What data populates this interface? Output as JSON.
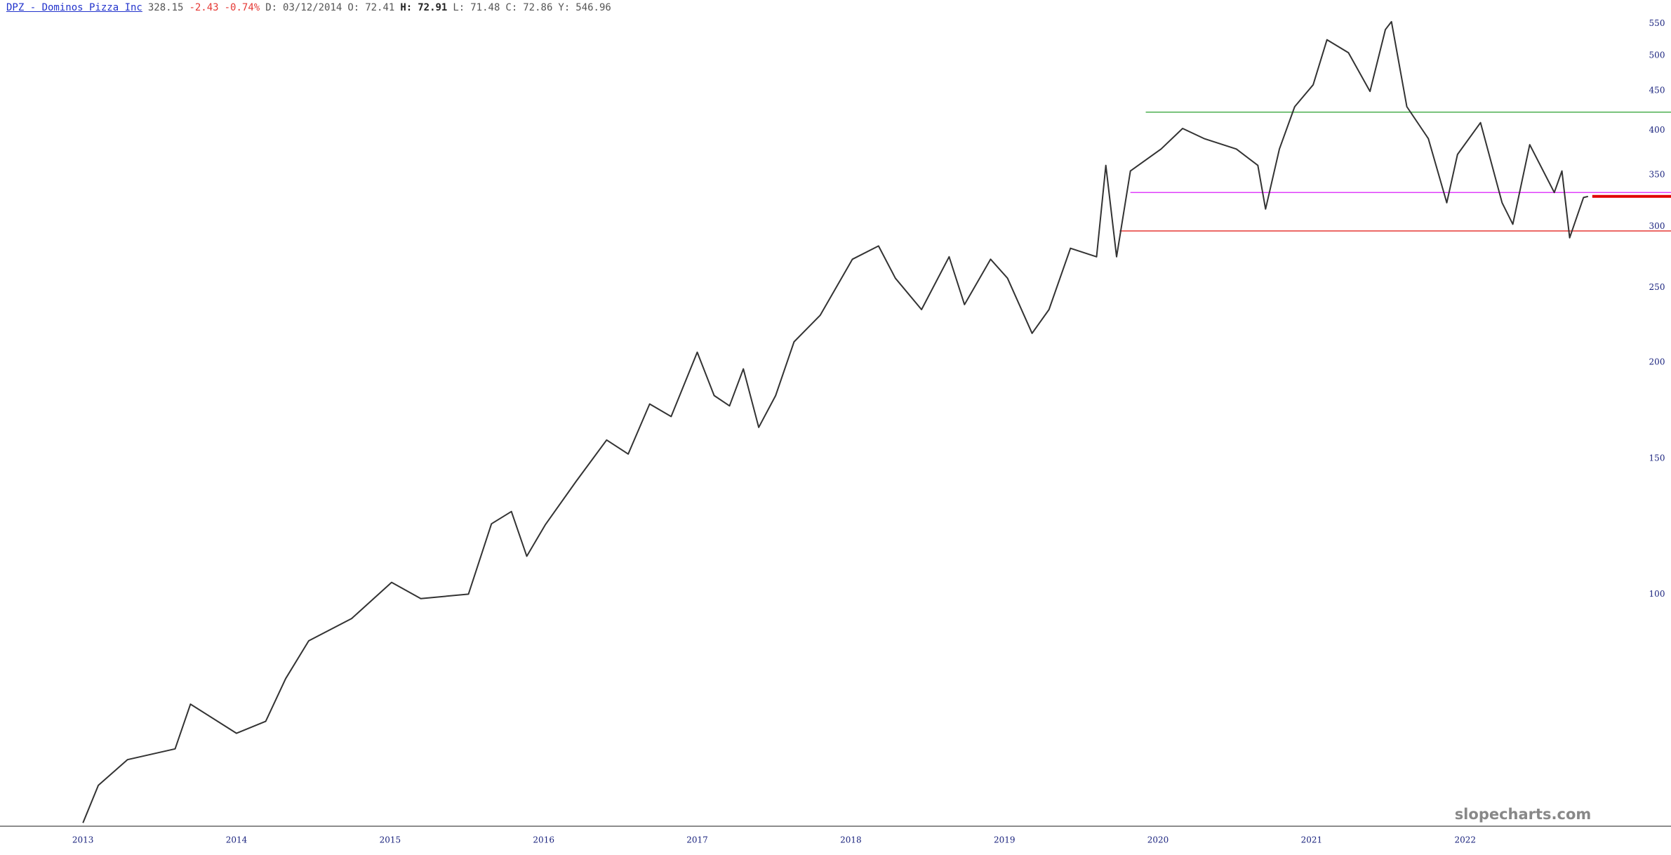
{
  "header": {
    "symbol": "DPZ - Dominos Pizza Inc",
    "last": "328.15",
    "change": "-2.43",
    "change_pct": "-0.74%",
    "date_label": "D:",
    "date": "03/12/2014",
    "ohlc": [
      {
        "label": "O:",
        "value": "72.41"
      },
      {
        "label": "H:",
        "value": "72.91"
      },
      {
        "label": "L:",
        "value": "71.48"
      },
      {
        "label": "C:",
        "value": "72.86"
      }
    ],
    "y_label": "Y:",
    "y_value": "546.96"
  },
  "chart_data": {
    "type": "line",
    "log_scale": true,
    "x": [
      2013.0,
      2013.1,
      2013.29,
      2013.6,
      2013.7,
      2014.0,
      2014.19,
      2014.32,
      2014.47,
      2014.75,
      2015.01,
      2015.2,
      2015.51,
      2015.66,
      2015.79,
      2015.89,
      2016.01,
      2016.21,
      2016.41,
      2016.55,
      2016.69,
      2016.83,
      2017.0,
      2017.11,
      2017.21,
      2017.3,
      2017.4,
      2017.51,
      2017.63,
      2017.8,
      2018.01,
      2018.18,
      2018.29,
      2018.46,
      2018.64,
      2018.74,
      2018.91,
      2019.02,
      2019.18,
      2019.29,
      2019.43,
      2019.6,
      2019.66,
      2019.73,
      2019.82,
      2020.02,
      2020.16,
      2020.3,
      2020.51,
      2020.65,
      2020.7,
      2020.79,
      2020.89,
      2021.01,
      2021.1,
      2021.24,
      2021.38,
      2021.48,
      2021.52,
      2021.62,
      2021.76,
      2021.88,
      2021.95,
      2022.1,
      2022.24,
      2022.31,
      2022.42,
      2022.58,
      2022.63,
      2022.68,
      2022.77,
      2022.8
    ],
    "series": [
      {
        "name": "DPZ",
        "color": "#333333",
        "values": [
          50.5,
          56.5,
          61,
          63,
          72,
          66,
          68.4,
          77.7,
          87,
          93,
          103.6,
          98.7,
          100,
          123.4,
          128,
          112,
          123,
          140,
          158.5,
          152,
          176.5,
          170,
          206,
          181,
          175.5,
          196,
          164.6,
          181,
          212.5,
          230,
          272,
          283,
          257,
          234,
          274,
          237.5,
          272,
          257,
          218,
          234,
          281,
          274,
          360,
          274,
          354,
          378,
          402,
          390,
          378,
          360,
          316,
          378,
          429,
          458,
          524,
          504,
          449,
          540,
          553,
          429,
          390,
          322,
          372,
          409,
          322,
          302,
          383,
          332,
          354,
          290,
          327,
          328.15
        ]
      }
    ],
    "hlines": [
      {
        "value": 422,
        "start": 2019.92,
        "color": "#4caf50"
      },
      {
        "value": 332,
        "start": 2019.82,
        "color": "#e040fb"
      },
      {
        "value": 296,
        "start": 2019.75,
        "color": "#e53935"
      }
    ],
    "marker_color": "#e00000",
    "xlim": [
      2012.46,
      2023.34
    ],
    "ylim": [
      50,
      590
    ],
    "xticks": [
      2013,
      2014,
      2015,
      2016,
      2017,
      2018,
      2019,
      2020,
      2021,
      2022
    ],
    "yticks": [
      100,
      150,
      200,
      250,
      300,
      350,
      400,
      450,
      500,
      550
    ],
    "watermark": "slopecharts.com"
  }
}
